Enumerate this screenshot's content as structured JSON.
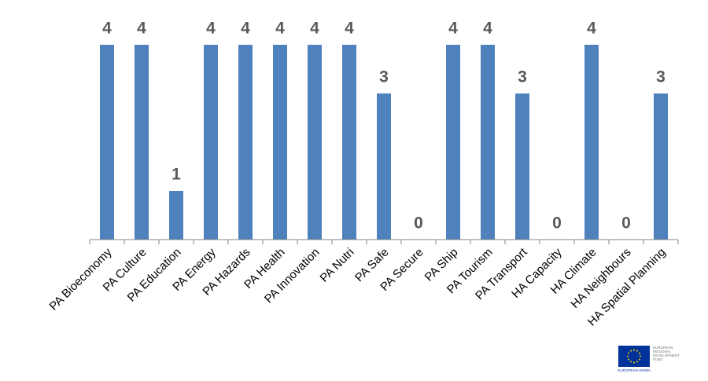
{
  "chart_data": {
    "type": "bar",
    "categories": [
      "PA Bioeconomy",
      "PA Culture",
      "PA Education",
      "PA Energy",
      "PA Hazards",
      "PA Health",
      "PA Innovation",
      "PA Nutri",
      "PA Safe",
      "PA Secure",
      "PA Ship",
      "PA Tourism",
      "PA Transport",
      "HA Capacity",
      "HA Climate",
      "HA Neighbours",
      "HA Spatial Planning"
    ],
    "values": [
      4,
      4,
      1,
      4,
      4,
      4,
      4,
      4,
      3,
      0,
      4,
      4,
      3,
      0,
      4,
      0,
      3
    ],
    "color": "#4f81bd",
    "ylim": [
      0,
      4
    ],
    "grid": false
  },
  "logo": {
    "caption": "EUROPEAN UNION",
    "fund": [
      "EUROPEAN",
      "REGIONAL",
      "DEVELOPMENT",
      "FUND"
    ]
  }
}
